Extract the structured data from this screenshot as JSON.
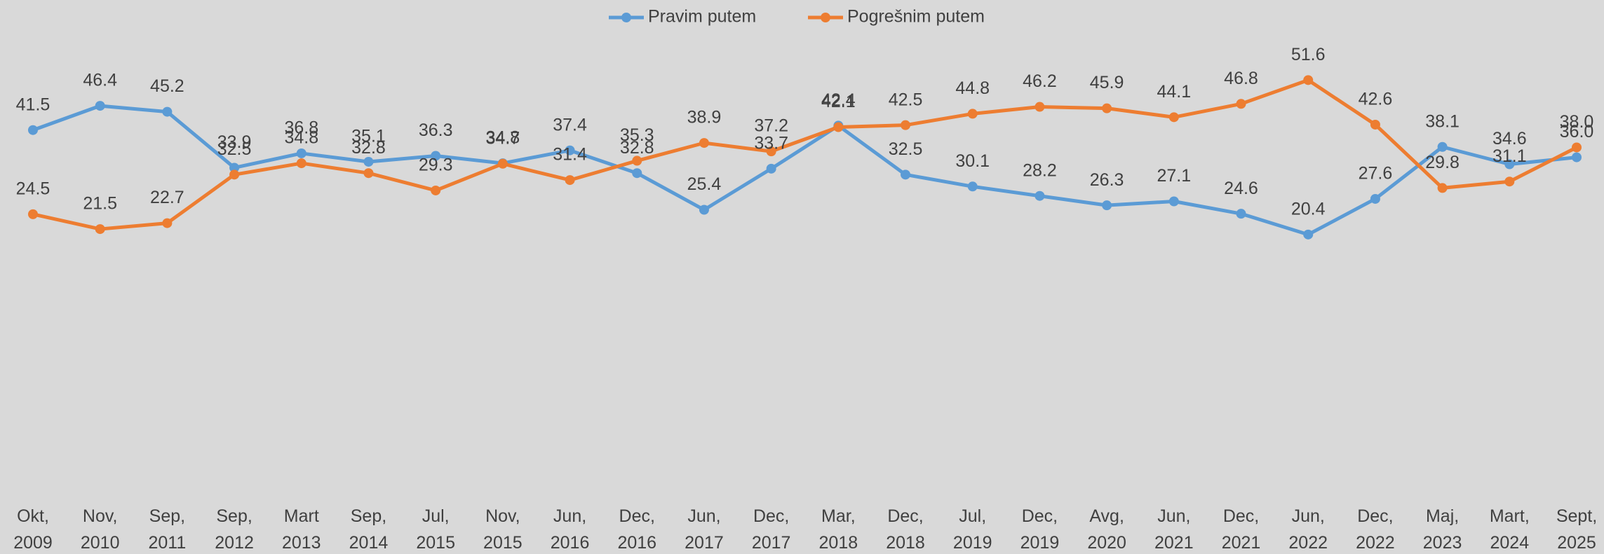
{
  "chart_data": {
    "type": "line",
    "categories": [
      "Okt, 2009",
      "Nov, 2010",
      "Sep, 2011",
      "Sep, 2012",
      "Mart 2013",
      "Sep, 2014",
      "Jul, 2015",
      "Nov, 2015",
      "Jun, 2016",
      "Dec, 2016",
      "Jun, 2017",
      "Dec, 2017",
      "Mar, 2018",
      "Dec, 2018",
      "Jul, 2019",
      "Dec, 2019",
      "Avg, 2020",
      "Jun, 2021",
      "Dec, 2021",
      "Jun, 2022",
      "Dec, 2022",
      "Maj, 2023",
      "Mart, 2024",
      "Sept, 2025"
    ],
    "series": [
      {
        "name": "Pravim putem",
        "color": "#5b9bd5",
        "values": [
          41.5,
          46.4,
          45.2,
          33.9,
          36.8,
          35.1,
          36.3,
          34.8,
          37.4,
          32.8,
          25.4,
          33.7,
          42.4,
          32.5,
          30.1,
          28.2,
          26.3,
          27.1,
          24.6,
          20.4,
          27.6,
          38.1,
          34.6,
          36
        ],
        "value_labels": [
          "41.5",
          "46.4",
          "45.2",
          "33.9",
          "36.8",
          "35.1",
          "36.3",
          "34.8",
          "37.4",
          "32.8",
          "25.4",
          "33.7",
          "42.4",
          "32.5",
          "30.1",
          "28.2",
          "26.3",
          "27.1",
          "24.6",
          "20.4",
          "27.6",
          "38.1",
          "34.6",
          "36.0"
        ]
      },
      {
        "name": "Pogrešnim putem",
        "color": "#ed7d31",
        "values": [
          24.5,
          21.5,
          22.7,
          32.5,
          34.8,
          32.8,
          29.3,
          34.7,
          31.4,
          35.3,
          38.9,
          37.2,
          42.1,
          42.5,
          44.8,
          46.2,
          45.9,
          44.1,
          46.8,
          51.6,
          42.6,
          29.8,
          31.1,
          38
        ],
        "value_labels": [
          "24.5",
          "21.5",
          "22.7",
          "32.5",
          "34.8",
          "32.8",
          "29.3",
          "34.7",
          "31.4",
          "35.3",
          "38.9",
          "37.2",
          "42.1",
          "42.5",
          "44.8",
          "46.2",
          "45.9",
          "44.1",
          "46.8",
          "51.6",
          "42.6",
          "29.8",
          "31.1",
          "38.0"
        ]
      }
    ],
    "ylim": [
      0,
      60
    ],
    "legend": "top"
  }
}
